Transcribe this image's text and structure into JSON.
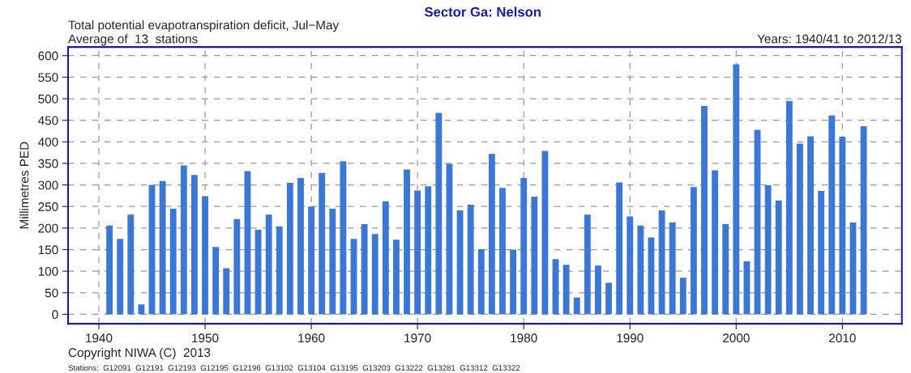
{
  "chart_data": {
    "type": "bar",
    "title": "Sector Ga: Nelson",
    "subtitle": "Total potential evapotranspiration deficit, Jul−May",
    "ylabel": "Millimetres PED",
    "x": [
      1941,
      1942,
      1943,
      1944,
      1945,
      1946,
      1947,
      1948,
      1949,
      1950,
      1951,
      1952,
      1953,
      1954,
      1955,
      1956,
      1957,
      1958,
      1959,
      1960,
      1961,
      1962,
      1963,
      1964,
      1965,
      1966,
      1967,
      1968,
      1969,
      1970,
      1971,
      1972,
      1973,
      1974,
      1975,
      1976,
      1977,
      1978,
      1979,
      1980,
      1981,
      1982,
      1983,
      1984,
      1985,
      1986,
      1987,
      1988,
      1989,
      1990,
      1991,
      1992,
      1993,
      1994,
      1995,
      1996,
      1997,
      1998,
      1999,
      2000,
      2001,
      2002,
      2003,
      2004,
      2005,
      2006,
      2007,
      2008,
      2009,
      2010,
      2011,
      2012
    ],
    "values": [
      206,
      175,
      231,
      23,
      300,
      309,
      245,
      345,
      323,
      274,
      156,
      107,
      221,
      332,
      196,
      231,
      204,
      305,
      316,
      250,
      328,
      245,
      355,
      175,
      209,
      186,
      262,
      173,
      336,
      287,
      297,
      467,
      349,
      241,
      254,
      151,
      372,
      293,
      150,
      316,
      273,
      379,
      128,
      115,
      39,
      231,
      113,
      73,
      306,
      227,
      206,
      178,
      241,
      213,
      85,
      295,
      483,
      334,
      209,
      580,
      123,
      428,
      299,
      264,
      495,
      396,
      413,
      286,
      461,
      412,
      213,
      436
    ],
    "color": "#3b78d6",
    "xlim": [
      1937.1,
      2015.6
    ],
    "xticks": [
      1940,
      1950,
      1960,
      1970,
      1980,
      1990,
      2000,
      2010
    ],
    "ylim": [
      -22,
      620
    ],
    "yticks": [
      0,
      50,
      100,
      150,
      200,
      250,
      300,
      350,
      400,
      450,
      500,
      550,
      600
    ],
    "grid": true,
    "annotations": [
      "Average of  13  stations",
      "Years: 1940/41 to 2012/13",
      "Copyright NIWA (C)  2013",
      "Stations:  G12091  G12191  G12193  G12195  G12196  G13102  G13104  G13195  G13203  G13222  G13281  G13312  G13322"
    ]
  }
}
